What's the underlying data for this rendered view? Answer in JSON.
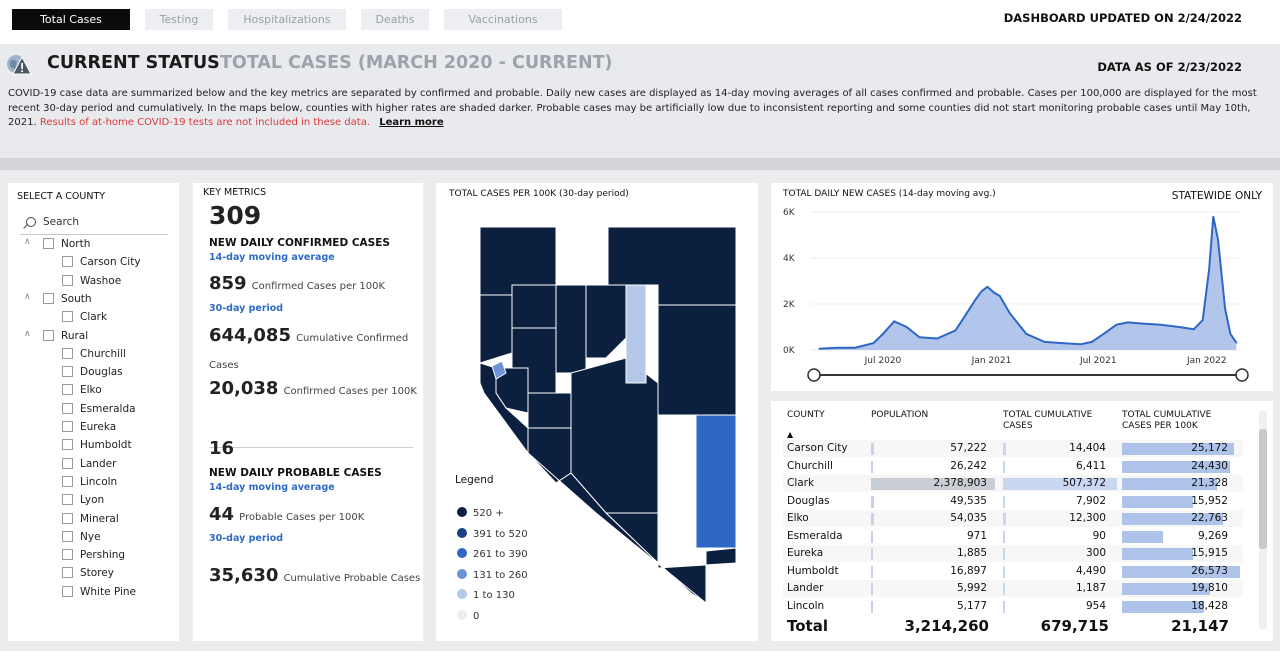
{
  "tabs": [
    {
      "label": "Total Cases",
      "active": true
    },
    {
      "label": "Testing",
      "active": false
    },
    {
      "label": "Hospitalizations",
      "active": false
    },
    {
      "label": "Deaths",
      "active": false
    },
    {
      "label": "Vaccinations",
      "active": false
    }
  ],
  "dashboard_updated": "DASHBOARD UPDATED ON 2/24/2022",
  "header": {
    "title": "CURRENT STATUS",
    "subtitle": "TOTAL CASES (MARCH 2020 - CURRENT)",
    "data_as_of": "DATA AS OF 2/23/2022",
    "description": "COVID-19 case data are summarized below and the key metrics are separated by confirmed and probable. Daily new cases are displayed as 14-day moving averages of all cases confirmed and probable. Cases per 100,000 are displayed for the most recent 30-day period and cumulatively. In the maps below, counties with higher rates are shaded darker. Probable cases may be artificially low due to inconsistent reporting and some counties did not start monitoring probable cases until May 10th, 2021.",
    "warning": "Results of at-home COVID-19 tests are not included in these data.",
    "learn_more": "Learn more"
  },
  "county_filter": {
    "title": "SELECT A COUNTY",
    "search_placeholder": "Search",
    "groups": [
      {
        "name": "North",
        "counties": [
          "Carson City",
          "Washoe"
        ]
      },
      {
        "name": "South",
        "counties": [
          "Clark"
        ]
      },
      {
        "name": "Rural",
        "counties": [
          "Churchill",
          "Douglas",
          "Elko",
          "Esmeralda",
          "Eureka",
          "Humboldt",
          "Lander",
          "Lincoln",
          "Lyon",
          "Mineral",
          "Nye",
          "Pershing",
          "Storey",
          "White Pine"
        ]
      }
    ]
  },
  "key_metrics": {
    "title": "KEY METRICS",
    "confirmed_daily": "309",
    "confirmed_daily_label": "NEW DAILY CONFIRMED CASES",
    "moving_avg_label": "14-day moving average",
    "confirmed_per100k_30d": "859",
    "confirmed_per100k_label": "Confirmed Cases per 100K",
    "period_label": "30-day period",
    "cumulative_confirmed": "644,085",
    "cumulative_confirmed_label": "Cumulative Confirmed Cases",
    "confirmed_per100k_cum": "20,038",
    "confirmed_per100k_cum_label": "Confirmed Cases per 100K",
    "probable_daily": "16",
    "probable_daily_label": "NEW DAILY PROBABLE CASES",
    "probable_per100k_30d": "44",
    "probable_per100k_label": "Probable Cases per 100K",
    "cumulative_probable": "35,630",
    "cumulative_probable_label": "Cumulative Probable Cases"
  },
  "map": {
    "title": "TOTAL CASES PER 100K (30-day period)",
    "legend_title": "Legend",
    "legend": [
      {
        "label": "520 +",
        "color": "#0b1f3f"
      },
      {
        "label": "391 to 520",
        "color": "#1c3f85"
      },
      {
        "label": "261 to 390",
        "color": "#2f67c6"
      },
      {
        "label": "131 to 260",
        "color": "#6b93d6"
      },
      {
        "label": "1 to 130",
        "color": "#b5c8ea"
      },
      {
        "label": "0",
        "color": "#eeeeee"
      }
    ]
  },
  "chart": {
    "title": "TOTAL DAILY NEW CASES (14-day moving avg.)",
    "statewide_label": "STATEWIDE ONLY",
    "accent": "#2f67c6"
  },
  "chart_data": {
    "type": "area",
    "title": "TOTAL DAILY NEW CASES (14-day moving avg.)",
    "y_ticks": [
      "6K",
      "4K",
      "2K",
      "0K"
    ],
    "x_ticks": [
      "Jul 2020",
      "Jan 2021",
      "Jul 2021",
      "Jan 2022"
    ],
    "ylim": [
      0,
      6000
    ],
    "x": [
      "2020-03-15",
      "2020-04-15",
      "2020-05-15",
      "2020-06-15",
      "2020-07-01",
      "2020-07-20",
      "2020-08-10",
      "2020-09-01",
      "2020-10-01",
      "2020-11-01",
      "2020-11-20",
      "2020-12-05",
      "2020-12-15",
      "2020-12-25",
      "2021-01-05",
      "2021-01-15",
      "2021-02-01",
      "2021-03-01",
      "2021-04-01",
      "2021-05-01",
      "2021-06-01",
      "2021-06-20",
      "2021-07-10",
      "2021-08-01",
      "2021-08-20",
      "2021-09-15",
      "2021-10-15",
      "2021-11-15",
      "2021-12-10",
      "2021-12-25",
      "2022-01-05",
      "2022-01-12",
      "2022-01-20",
      "2022-02-01",
      "2022-02-10",
      "2022-02-20"
    ],
    "series": [
      {
        "values": [
          50,
          100,
          100,
          300,
          700,
          1250,
          1000,
          550,
          500,
          850,
          1600,
          2200,
          2550,
          2750,
          2500,
          2350,
          1600,
          700,
          350,
          300,
          250,
          350,
          700,
          1100,
          1200,
          1150,
          1100,
          1000,
          900,
          1300,
          3500,
          5800,
          4800,
          1800,
          700,
          320
        ]
      }
    ],
    "range_slider": "full"
  },
  "table": {
    "headers": [
      "COUNTY",
      "POPULATION",
      "TOTAL CUMULATIVE CASES",
      "TOTAL CUMULATIVE CASES PER 100K"
    ],
    "sort_indicator": "▲",
    "rows": [
      {
        "county": "Carson City",
        "population": "57,222",
        "cases": "14,404",
        "per100k": "25,172",
        "pop_frac": 0.024,
        "cases_frac": 0.028,
        "per_frac": 0.947
      },
      {
        "county": "Churchill",
        "population": "26,242",
        "cases": "6,411",
        "per100k": "24,430",
        "pop_frac": 0.011,
        "cases_frac": 0.013,
        "per_frac": 0.919
      },
      {
        "county": "Clark",
        "population": "2,378,903",
        "cases": "507,372",
        "per100k": "21,328",
        "pop_frac": 1.0,
        "cases_frac": 1.0,
        "per_frac": 0.803
      },
      {
        "county": "Douglas",
        "population": "49,535",
        "cases": "7,902",
        "per100k": "15,952",
        "pop_frac": 0.021,
        "cases_frac": 0.016,
        "per_frac": 0.6
      },
      {
        "county": "Elko",
        "population": "54,035",
        "cases": "12,300",
        "per100k": "22,763",
        "pop_frac": 0.023,
        "cases_frac": 0.024,
        "per_frac": 0.857
      },
      {
        "county": "Esmeralda",
        "population": "971",
        "cases": "90",
        "per100k": "9,269",
        "pop_frac": 0.0004,
        "cases_frac": 0.0002,
        "per_frac": 0.349
      },
      {
        "county": "Eureka",
        "population": "1,885",
        "cases": "300",
        "per100k": "15,915",
        "pop_frac": 0.0008,
        "cases_frac": 0.0006,
        "per_frac": 0.599
      },
      {
        "county": "Humboldt",
        "population": "16,897",
        "cases": "4,490",
        "per100k": "26,573",
        "pop_frac": 0.007,
        "cases_frac": 0.009,
        "per_frac": 1.0
      },
      {
        "county": "Lander",
        "population": "5,992",
        "cases": "1,187",
        "per100k": "19,810",
        "pop_frac": 0.0025,
        "cases_frac": 0.0023,
        "per_frac": 0.745
      },
      {
        "county": "Lincoln",
        "population": "5,177",
        "cases": "954",
        "per100k": "18,428",
        "pop_frac": 0.0022,
        "cases_frac": 0.0019,
        "per_frac": 0.693
      }
    ],
    "total": {
      "label": "Total",
      "population": "3,214,260",
      "cases": "679,715",
      "per100k": "21,147"
    }
  }
}
